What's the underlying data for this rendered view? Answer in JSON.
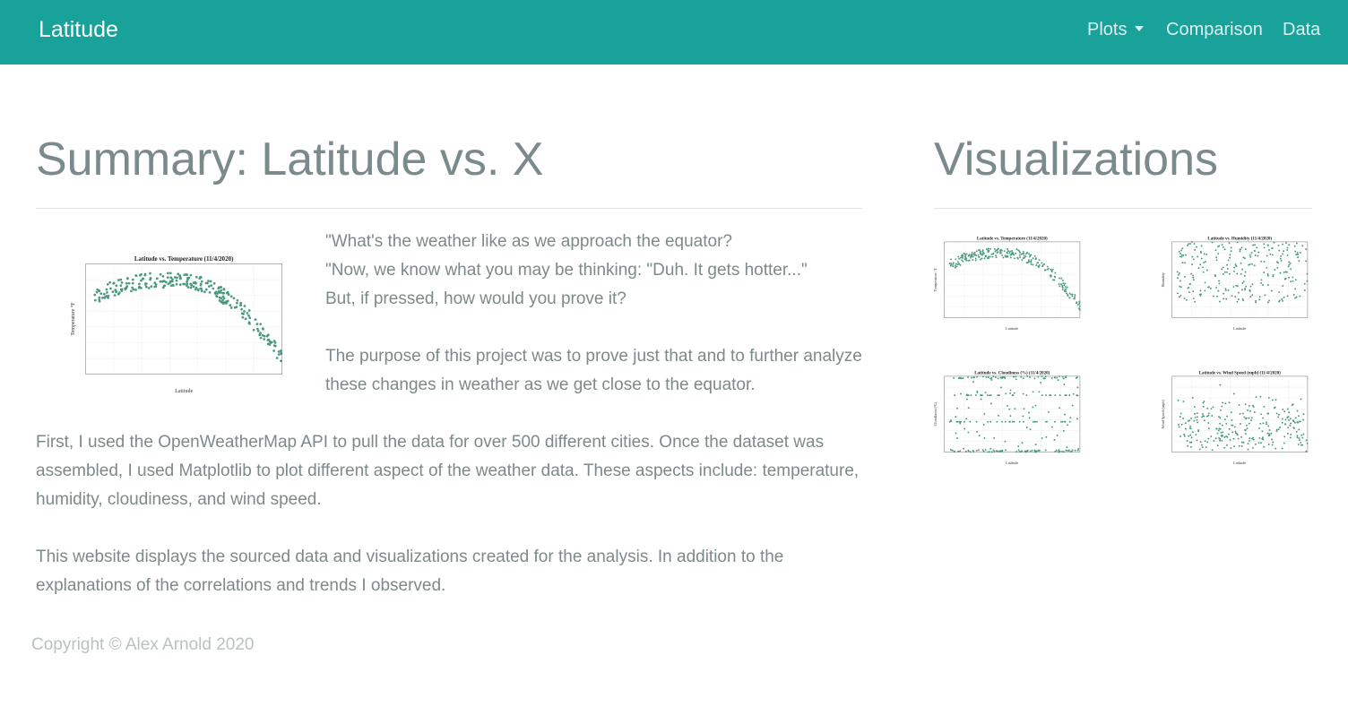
{
  "nav": {
    "brand": "Latitude",
    "plots": "Plots",
    "comparison": "Comparison",
    "data": "Data"
  },
  "summary": {
    "title": "Summary: Latitude vs. X",
    "intro_lines": [
      "\"What's the weather like as we approach the equator?",
      "\"Now, we know what you may be thinking: \"Duh. It gets hotter...\"",
      "But, if pressed, how would you prove it?"
    ],
    "para2": "The purpose of this project was to prove just that and to further analyze these changes in weather as we get close to the equator.",
    "para3": "First, I used the OpenWeatherMap API to pull the data for over 500 different cities. Once the dataset was assembled, I used Matplotlib to plot different aspect of the weather data. These aspects include: temperature, humidity, cloudiness, and wind speed.",
    "para4": "This website displays the sourced data and visualizations created for the analysis. In addition to the explanations of the correlations and trends I observed."
  },
  "visualizations": {
    "title": "Visualizations",
    "plots": [
      {
        "title": "Latitude vs. Temperature (11/4/2020)",
        "xlabel": "Latitude",
        "ylabel": "Temperature °F",
        "kind": "temp"
      },
      {
        "title": "Latitude vs. Humidity (11/4/2020)",
        "xlabel": "Latitude",
        "ylabel": "Humidity",
        "kind": "humidity"
      },
      {
        "title": "Latitude vs. Cloudiness (%) (11/4/2020)",
        "xlabel": "Latitude",
        "ylabel": "Cloudiness (%)",
        "kind": "cloud"
      },
      {
        "title": "Latitude vs. Wind Speed (mph) (11/4/2020)",
        "xlabel": "Latitude",
        "ylabel": "Wind Speed (mph)",
        "kind": "wind"
      }
    ]
  },
  "footer": {
    "copyright": "Copyright © Alex Arnold 2020"
  },
  "colors": {
    "navbar": "#18a29a",
    "text": "#7b8a8b",
    "dots": "#4a9a7e"
  }
}
